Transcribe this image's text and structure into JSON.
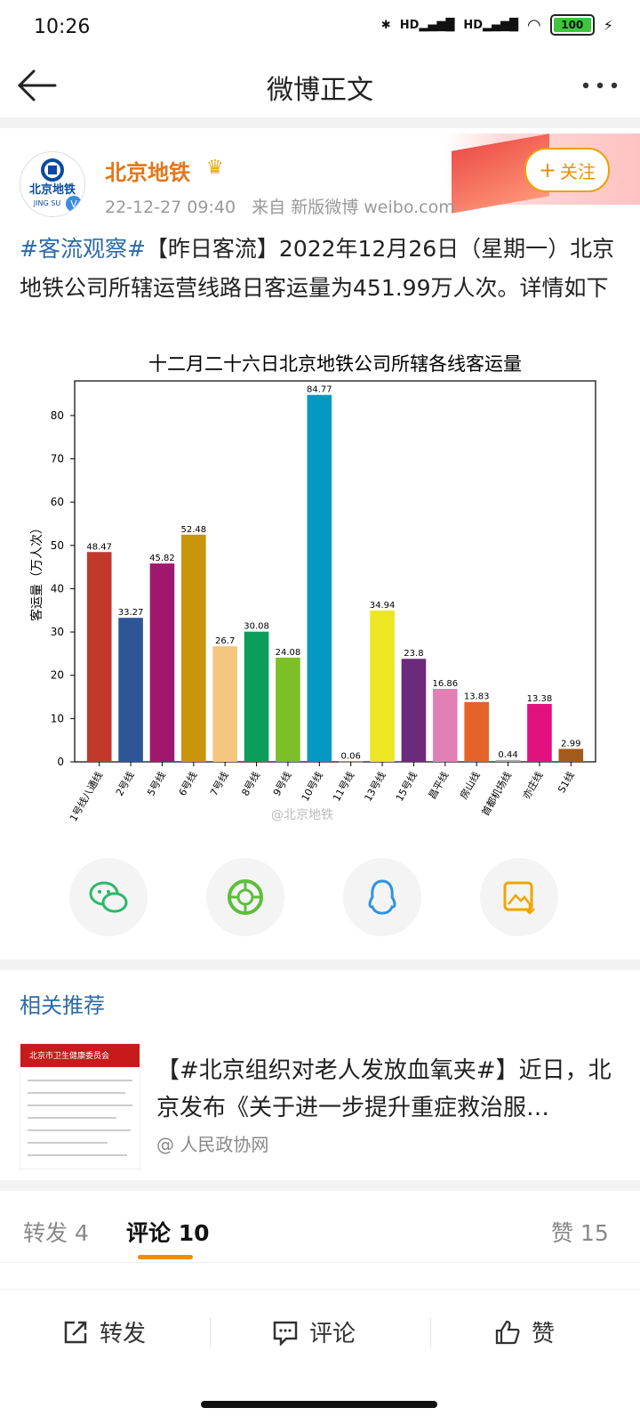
{
  "status": {
    "time": "10:26",
    "hd1": "HD",
    "hd2": "HD",
    "battery": "100"
  },
  "header": {
    "title": "微博正文"
  },
  "user": {
    "name": "北京地铁",
    "time": "22-12-27 09:40",
    "source": "来自 新版微博 weibo.com",
    "follow_label": "关注",
    "avatar_text": "北京地铁",
    "avatar_sub": "JING SU"
  },
  "post": {
    "tag": "#客流观察#",
    "text": "【昨日客流】2022年12月26日（星期一）北京地铁公司所辖运营线路日客运量为451.99万人次。详情如下"
  },
  "chart_data": {
    "type": "bar",
    "title": "十二月二十六日北京地铁公司所辖各线客运量",
    "ylabel": "客运量（万人次）",
    "xlabel": "",
    "ylim": [
      0,
      88
    ],
    "yticks": [
      0,
      10,
      20,
      30,
      40,
      50,
      60,
      70,
      80
    ],
    "categories": [
      "1号线八通线",
      "2号线",
      "5号线",
      "6号线",
      "7号线",
      "8号线",
      "9号线",
      "10号线",
      "11号线",
      "13号线",
      "15号线",
      "昌平线",
      "房山线",
      "首都机场线",
      "亦庄线",
      "S1线"
    ],
    "values": [
      48.47,
      33.27,
      45.82,
      52.48,
      26.7,
      30.08,
      24.08,
      84.77,
      0.06,
      34.94,
      23.8,
      16.86,
      13.83,
      0.44,
      13.38,
      2.99
    ],
    "value_labels": [
      "48.47",
      "33.27",
      "45.82",
      "52.48",
      "26.7",
      "30.08",
      "24.08",
      "84.77",
      "0.06",
      "34.94",
      "23.8",
      "16.86",
      "13.83",
      "0.44",
      "13.38",
      "2.99"
    ],
    "colors": [
      "#c0392b",
      "#2e5596",
      "#a0186e",
      "#c9950c",
      "#f5c77e",
      "#0a9e5a",
      "#7cbf26",
      "#0598c2",
      "#e8a060",
      "#ece623",
      "#6b2a7c",
      "#e080b5",
      "#e3632b",
      "#a8a8a8",
      "#e1127f",
      "#a45a1a"
    ],
    "watermark": "@北京地铁"
  },
  "share": [
    "wechat-icon",
    "moments-icon",
    "qq-icon",
    "save-image-icon"
  ],
  "related": {
    "title": "相关推荐",
    "text": "【#北京组织对老人发放血氧夹#】近日，北京发布《关于进一步提升重症救治服…",
    "source": "@ 人民政协网",
    "thumb_header": "北京市卫生健康委员会"
  },
  "tabs": {
    "repost": "转发 4",
    "comment": "评论 10",
    "like": "赞 15"
  },
  "bottom": {
    "repost": "转发",
    "comment": "评论",
    "like": "赞"
  }
}
